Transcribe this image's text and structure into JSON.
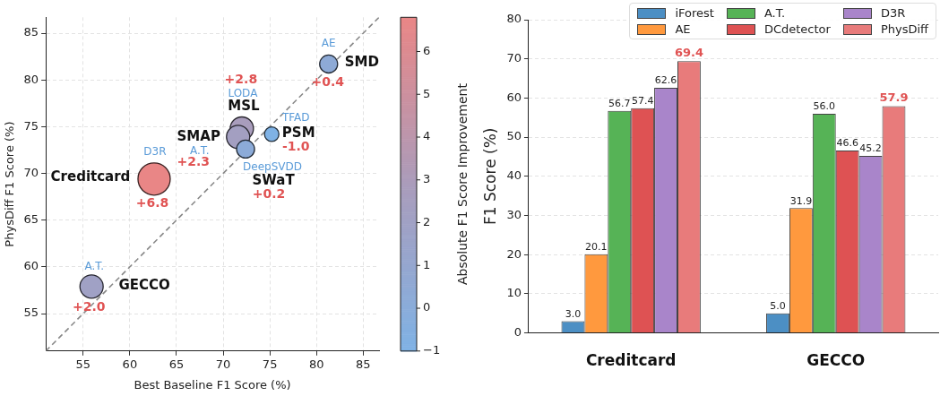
{
  "chart_data": [
    {
      "type": "bubble",
      "xlabel": "Best Baseline F1 Score (%)",
      "ylabel": "PhysDiff F1 Score (%)",
      "clabel": "Absolute F1 Score Improvement",
      "xlim": [
        51,
        86.7
      ],
      "ylim": [
        51,
        86.7
      ],
      "xticks": [
        55,
        60,
        65,
        70,
        75,
        80,
        85
      ],
      "yticks": [
        55,
        60,
        65,
        70,
        75,
        80,
        85
      ],
      "clim": [
        -1.0,
        6.8
      ],
      "cticks": [
        {
          "value": -1,
          "label": "−1"
        },
        0,
        1,
        2,
        3,
        4,
        5,
        6
      ],
      "grid": true,
      "legend": false,
      "marker": "circle",
      "series": [
        {
          "type": "bubble",
          "x": [
            81.3,
            72.0,
            71.6,
            72.4,
            75.2,
            62.6,
            55.9
          ],
          "values": [
            81.7,
            74.8,
            73.9,
            72.6,
            74.2,
            69.4,
            57.9
          ],
          "sizes": [
            0.31,
            0.52,
            0.52,
            0.31,
            0.2,
            1,
            0.52
          ],
          "cvalues": [
            0.4,
            2.8,
            2.3,
            0.2,
            -1.0,
            6.8,
            2.0
          ],
          "colors": [
            "#8eaad6",
            "#a99dbc",
            "#a39fc1",
            "#8cabd8",
            "#7fb2e5",
            "#e98686",
            "#a0a1c5"
          ]
        },
        {
          "type": "line",
          "x": [
            51,
            86.7
          ],
          "values": [
            51,
            86.7
          ],
          "color": "#888888",
          "line_style": "dashed",
          "marker": "none"
        }
      ],
      "annotations": [
        "SMD",
        "AE",
        "+0.4",
        "MSL",
        "LODA",
        "+2.8",
        "SMAP",
        "A.T.",
        "+2.3",
        "SWaT",
        "DeepSVDD",
        "+0.2",
        "PSM",
        "TFAD",
        "-1.0",
        "Creditcard",
        "D3R",
        "+6.8",
        "GECCO",
        "A.T.",
        "+2.0"
      ]
    },
    {
      "type": "bar",
      "categories": [
        "Creditcard",
        "GECCO"
      ],
      "ylabel": "F1 Score (%)",
      "ylim": [
        0,
        80
      ],
      "yticks": [
        0,
        10,
        20,
        30,
        40,
        50,
        60,
        70,
        80
      ],
      "grid": "y",
      "legend": "top right",
      "series": [
        {
          "name": "iForest",
          "color": "#4c8fc4",
          "values": [
            3.0,
            5.0
          ],
          "value_labels": [
            "3.0",
            "5.0"
          ]
        },
        {
          "name": "AE",
          "color": "#ff993e",
          "values": [
            20.1,
            31.9
          ],
          "value_labels": [
            "20.1",
            "31.9"
          ]
        },
        {
          "name": "A.T.",
          "color": "#56b356",
          "values": [
            56.7,
            56.0
          ],
          "value_labels": [
            "56.7",
            "56.0"
          ]
        },
        {
          "name": "DCdetector",
          "color": "#de5253",
          "values": [
            57.4,
            46.6
          ],
          "value_labels": [
            "57.4",
            "46.6"
          ]
        },
        {
          "name": "D3R",
          "color": "#a985ca",
          "values": [
            62.6,
            45.2
          ],
          "value_labels": [
            "62.6",
            "45.2"
          ]
        },
        {
          "name": "PhysDiff",
          "color": "#e87b7b",
          "values": [
            69.4,
            57.9
          ],
          "value_labels": [
            "69.4",
            "57.9"
          ]
        }
      ]
    }
  ]
}
